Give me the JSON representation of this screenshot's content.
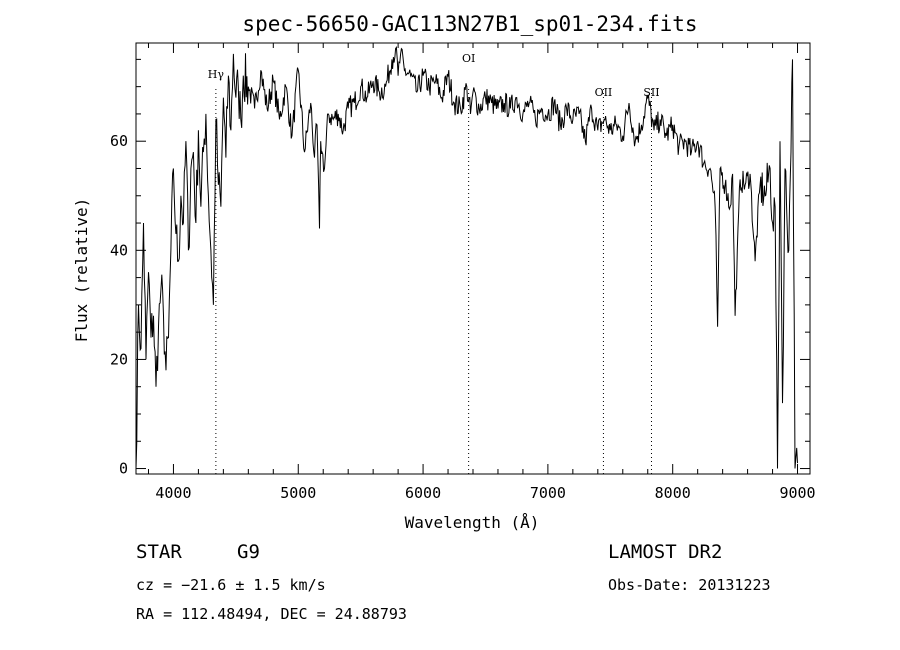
{
  "chart_data": {
    "type": "line",
    "title": "spec-56650-GAC113N27B1_sp01-234.fits",
    "xlabel": "Wavelength (Å)",
    "ylabel": "Flux (relative)",
    "xlim": [
      3700,
      9100
    ],
    "ylim": [
      -1,
      78
    ],
    "xticks": [
      4000,
      5000,
      6000,
      7000,
      8000,
      9000
    ],
    "yticks": [
      0,
      20,
      40,
      60
    ],
    "grid": false,
    "line_color": "#000000",
    "series": [
      {
        "x": [
          3700,
          3720,
          3740,
          3760,
          3780,
          3800,
          3820,
          3840,
          3860,
          3880,
          3900,
          3920,
          3940,
          3960,
          3980,
          4000,
          4020,
          4040,
          4060,
          4080,
          4100,
          4120,
          4140,
          4160,
          4180,
          4200,
          4220,
          4240,
          4260,
          4280,
          4300,
          4320,
          4340,
          4360,
          4380,
          4400,
          4420,
          4440,
          4460,
          4480,
          4500,
          4520,
          4540,
          4560,
          4600,
          4650,
          4700,
          4750,
          4800,
          4850,
          4900,
          4950,
          5000,
          5050,
          5100,
          5130,
          5150,
          5170,
          5180,
          5190,
          5210,
          5240,
          5280,
          5320,
          5360,
          5400,
          5450,
          5500,
          5550,
          5600,
          5650,
          5700,
          5750,
          5780,
          5800,
          5820,
          5850,
          5900,
          5950,
          6000,
          6050,
          6100,
          6150,
          6200,
          6250,
          6300,
          6350,
          6380,
          6400,
          6450,
          6500,
          6550,
          6600,
          6650,
          6700,
          6750,
          6800,
          6850,
          6900,
          6950,
          7000,
          7050,
          7100,
          7150,
          7200,
          7250,
          7300,
          7350,
          7400,
          7450,
          7500,
          7550,
          7600,
          7650,
          7700,
          7750,
          7800,
          7850,
          7900,
          7950,
          8000,
          8050,
          8100,
          8150,
          8200,
          8250,
          8300,
          8340,
          8360,
          8380,
          8420,
          8460,
          8480,
          8500,
          8540,
          8580,
          8620,
          8660,
          8700,
          8740,
          8780,
          8800,
          8820,
          8840,
          8860,
          8880,
          8900,
          8930,
          8960,
          8980,
          9000
        ],
        "y": [
          0,
          30,
          22,
          45,
          20,
          36,
          24,
          28,
          15,
          26,
          33,
          28,
          18,
          24,
          40,
          55,
          43,
          38,
          50,
          45,
          60,
          40,
          55,
          58,
          45,
          62,
          48,
          58,
          65,
          50,
          40,
          30,
          64,
          52,
          48,
          68,
          57,
          72,
          62,
          76,
          68,
          70,
          64,
          72,
          70,
          66,
          73,
          66,
          71,
          64,
          70,
          61,
          73,
          58,
          67,
          57,
          63,
          44,
          60,
          58,
          55,
          65,
          64,
          65,
          62,
          66,
          67,
          70,
          68,
          71,
          69,
          70,
          75,
          77,
          72,
          76,
          73,
          72,
          69,
          72,
          70,
          71,
          68,
          72,
          67,
          66,
          70,
          65,
          69,
          66,
          68,
          67,
          66,
          67,
          66,
          68,
          65,
          67,
          64,
          66,
          65,
          67,
          63,
          66,
          64,
          65,
          60,
          66,
          62,
          64,
          62,
          63,
          61,
          67,
          60,
          63,
          68,
          62,
          64,
          61,
          63,
          59,
          60,
          58,
          60,
          56,
          55,
          48,
          26,
          55,
          52,
          48,
          54,
          28,
          53,
          52,
          54,
          38,
          52,
          50,
          55,
          45,
          48,
          0,
          60,
          12,
          55,
          40,
          75,
          0,
          1
        ]
      }
    ],
    "line_markers": [
      {
        "label": "Hγ",
        "x": 4340
      },
      {
        "label": "OI",
        "x": 6365
      },
      {
        "label": "OII",
        "x": 7445
      },
      {
        "label": "SII",
        "x": 7830
      }
    ]
  },
  "info": {
    "obj_class": "STAR",
    "subclass": "G9",
    "survey": "LAMOST DR2",
    "redshift_text": "cz = −21.6 ± 1.5 km/s",
    "obs_date": "Obs-Date: 20131223",
    "coords": "RA = 112.48494, DEC =  24.88793"
  }
}
